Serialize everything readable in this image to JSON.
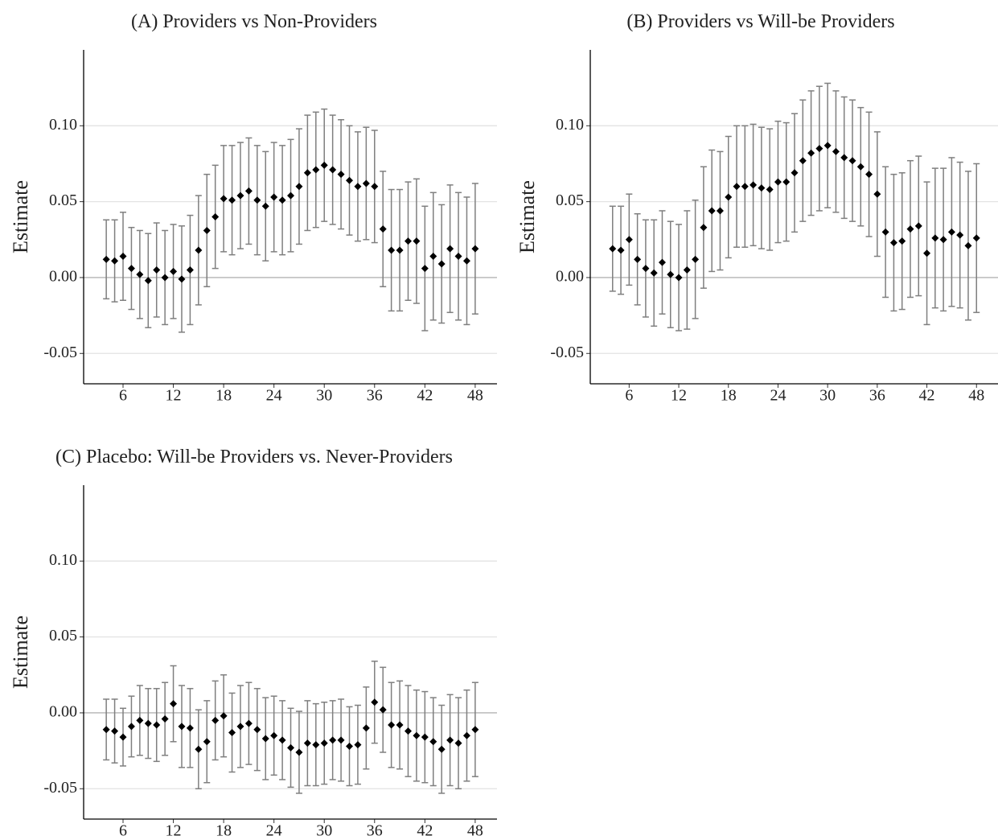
{
  "chart_data": [
    {
      "type": "errorbar",
      "title": "(A) Providers vs Non-Providers",
      "y_label": "Estimate",
      "color": "#000000",
      "error_color": "#7f7f7f",
      "grid": true,
      "x": [
        4,
        5,
        6,
        7,
        8,
        9,
        10,
        11,
        12,
        13,
        14,
        15,
        16,
        17,
        18,
        19,
        20,
        21,
        22,
        23,
        24,
        25,
        26,
        27,
        28,
        29,
        30,
        31,
        32,
        33,
        34,
        35,
        36,
        37,
        38,
        39,
        40,
        41,
        42,
        43,
        44,
        45,
        46,
        47,
        48
      ],
      "values": [
        0.012,
        0.011,
        0.014,
        0.006,
        0.002,
        -0.002,
        0.005,
        0.0,
        0.004,
        -0.001,
        0.005,
        0.018,
        0.031,
        0.04,
        0.052,
        0.051,
        0.054,
        0.057,
        0.051,
        0.047,
        0.053,
        0.051,
        0.054,
        0.06,
        0.069,
        0.071,
        0.074,
        0.071,
        0.068,
        0.064,
        0.06,
        0.062,
        0.06,
        0.032,
        0.018,
        0.018,
        0.024,
        0.024,
        0.006,
        0.014,
        0.009,
        0.019,
        0.014,
        0.011,
        0.019
      ],
      "errors": [
        0.026,
        0.027,
        0.029,
        0.027,
        0.029,
        0.031,
        0.031,
        0.031,
        0.031,
        0.035,
        0.036,
        0.036,
        0.037,
        0.034,
        0.035,
        0.036,
        0.035,
        0.035,
        0.036,
        0.036,
        0.036,
        0.036,
        0.037,
        0.038,
        0.038,
        0.038,
        0.037,
        0.036,
        0.036,
        0.036,
        0.036,
        0.037,
        0.037,
        0.038,
        0.04,
        0.04,
        0.039,
        0.041,
        0.041,
        0.042,
        0.039,
        0.042,
        0.042,
        0.042,
        0.043
      ],
      "xlim": [
        1.3,
        50.6
      ],
      "xticks": [
        6,
        12,
        18,
        24,
        30,
        36,
        42,
        48
      ],
      "ylim": [
        -0.07,
        0.15
      ],
      "yticks": [
        {
          "value": -0.05,
          "label": "-0.05"
        },
        {
          "value": 0,
          "label": "0.00"
        },
        {
          "value": 0.05,
          "label": "0.05"
        },
        {
          "value": 0.1,
          "label": "0.10"
        }
      ]
    },
    {
      "type": "errorbar",
      "title": "(B) Providers vs Will-be Providers",
      "y_label": "Estimate",
      "color": "#000000",
      "error_color": "#7f7f7f",
      "grid": true,
      "x": [
        4,
        5,
        6,
        7,
        8,
        9,
        10,
        11,
        12,
        13,
        14,
        15,
        16,
        17,
        18,
        19,
        20,
        21,
        22,
        23,
        24,
        25,
        26,
        27,
        28,
        29,
        30,
        31,
        32,
        33,
        34,
        35,
        36,
        37,
        38,
        39,
        40,
        41,
        42,
        43,
        44,
        45,
        46,
        47,
        48
      ],
      "values": [
        0.019,
        0.018,
        0.025,
        0.012,
        0.006,
        0.003,
        0.01,
        0.002,
        0.0,
        0.005,
        0.012,
        0.033,
        0.044,
        0.044,
        0.053,
        0.06,
        0.06,
        0.061,
        0.059,
        0.058,
        0.063,
        0.063,
        0.069,
        0.077,
        0.082,
        0.085,
        0.087,
        0.083,
        0.079,
        0.077,
        0.073,
        0.068,
        0.055,
        0.03,
        0.023,
        0.024,
        0.032,
        0.034,
        0.016,
        0.026,
        0.025,
        0.03,
        0.028,
        0.021,
        0.026
      ],
      "errors": [
        0.028,
        0.029,
        0.03,
        0.03,
        0.032,
        0.035,
        0.034,
        0.035,
        0.035,
        0.039,
        0.039,
        0.04,
        0.04,
        0.039,
        0.04,
        0.04,
        0.04,
        0.04,
        0.04,
        0.04,
        0.04,
        0.039,
        0.039,
        0.04,
        0.041,
        0.041,
        0.041,
        0.04,
        0.04,
        0.04,
        0.039,
        0.041,
        0.041,
        0.043,
        0.045,
        0.045,
        0.045,
        0.046,
        0.047,
        0.046,
        0.047,
        0.049,
        0.048,
        0.049,
        0.049
      ],
      "xlim": [
        1.3,
        50.6
      ],
      "xticks": [
        6,
        12,
        18,
        24,
        30,
        36,
        42,
        48
      ],
      "ylim": [
        -0.07,
        0.15
      ],
      "yticks": [
        {
          "value": -0.05,
          "label": "-0.05"
        },
        {
          "value": 0,
          "label": "0.00"
        },
        {
          "value": 0.05,
          "label": "0.05"
        },
        {
          "value": 0.1,
          "label": "0.10"
        }
      ]
    },
    {
      "type": "errorbar",
      "title": "(C) Placebo: Will-be Providers vs. Never-Providers",
      "y_label": "Estimate",
      "color": "#000000",
      "error_color": "#7f7f7f",
      "grid": true,
      "x": [
        4,
        5,
        6,
        7,
        8,
        9,
        10,
        11,
        12,
        13,
        14,
        15,
        16,
        17,
        18,
        19,
        20,
        21,
        22,
        23,
        24,
        25,
        26,
        27,
        28,
        29,
        30,
        31,
        32,
        33,
        34,
        35,
        36,
        37,
        38,
        39,
        40,
        41,
        42,
        43,
        44,
        45,
        46,
        47,
        48
      ],
      "values": [
        -0.011,
        -0.012,
        -0.016,
        -0.009,
        -0.005,
        -0.007,
        -0.008,
        -0.004,
        0.006,
        -0.009,
        -0.01,
        -0.024,
        -0.019,
        -0.005,
        -0.002,
        -0.013,
        -0.009,
        -0.007,
        -0.011,
        -0.017,
        -0.015,
        -0.018,
        -0.023,
        -0.026,
        -0.02,
        -0.021,
        -0.02,
        -0.018,
        -0.018,
        -0.022,
        -0.021,
        -0.01,
        0.007,
        0.002,
        -0.008,
        -0.008,
        -0.012,
        -0.015,
        -0.016,
        -0.019,
        -0.024,
        -0.018,
        -0.02,
        -0.015,
        -0.011
      ],
      "errors": [
        0.02,
        0.021,
        0.019,
        0.02,
        0.023,
        0.023,
        0.024,
        0.024,
        0.025,
        0.027,
        0.026,
        0.026,
        0.027,
        0.026,
        0.027,
        0.026,
        0.027,
        0.027,
        0.027,
        0.027,
        0.026,
        0.026,
        0.026,
        0.027,
        0.028,
        0.027,
        0.027,
        0.026,
        0.027,
        0.026,
        0.026,
        0.027,
        0.027,
        0.028,
        0.028,
        0.029,
        0.03,
        0.03,
        0.03,
        0.029,
        0.029,
        0.03,
        0.03,
        0.03,
        0.031
      ],
      "xlim": [
        1.3,
        50.6
      ],
      "xticks": [
        6,
        12,
        18,
        24,
        30,
        36,
        42,
        48
      ],
      "ylim": [
        -0.07,
        0.15
      ],
      "yticks": [
        {
          "value": -0.05,
          "label": "-0.05"
        },
        {
          "value": 0,
          "label": "0.00"
        },
        {
          "value": 0.05,
          "label": "0.05"
        },
        {
          "value": 0.1,
          "label": "0.10"
        }
      ]
    }
  ]
}
